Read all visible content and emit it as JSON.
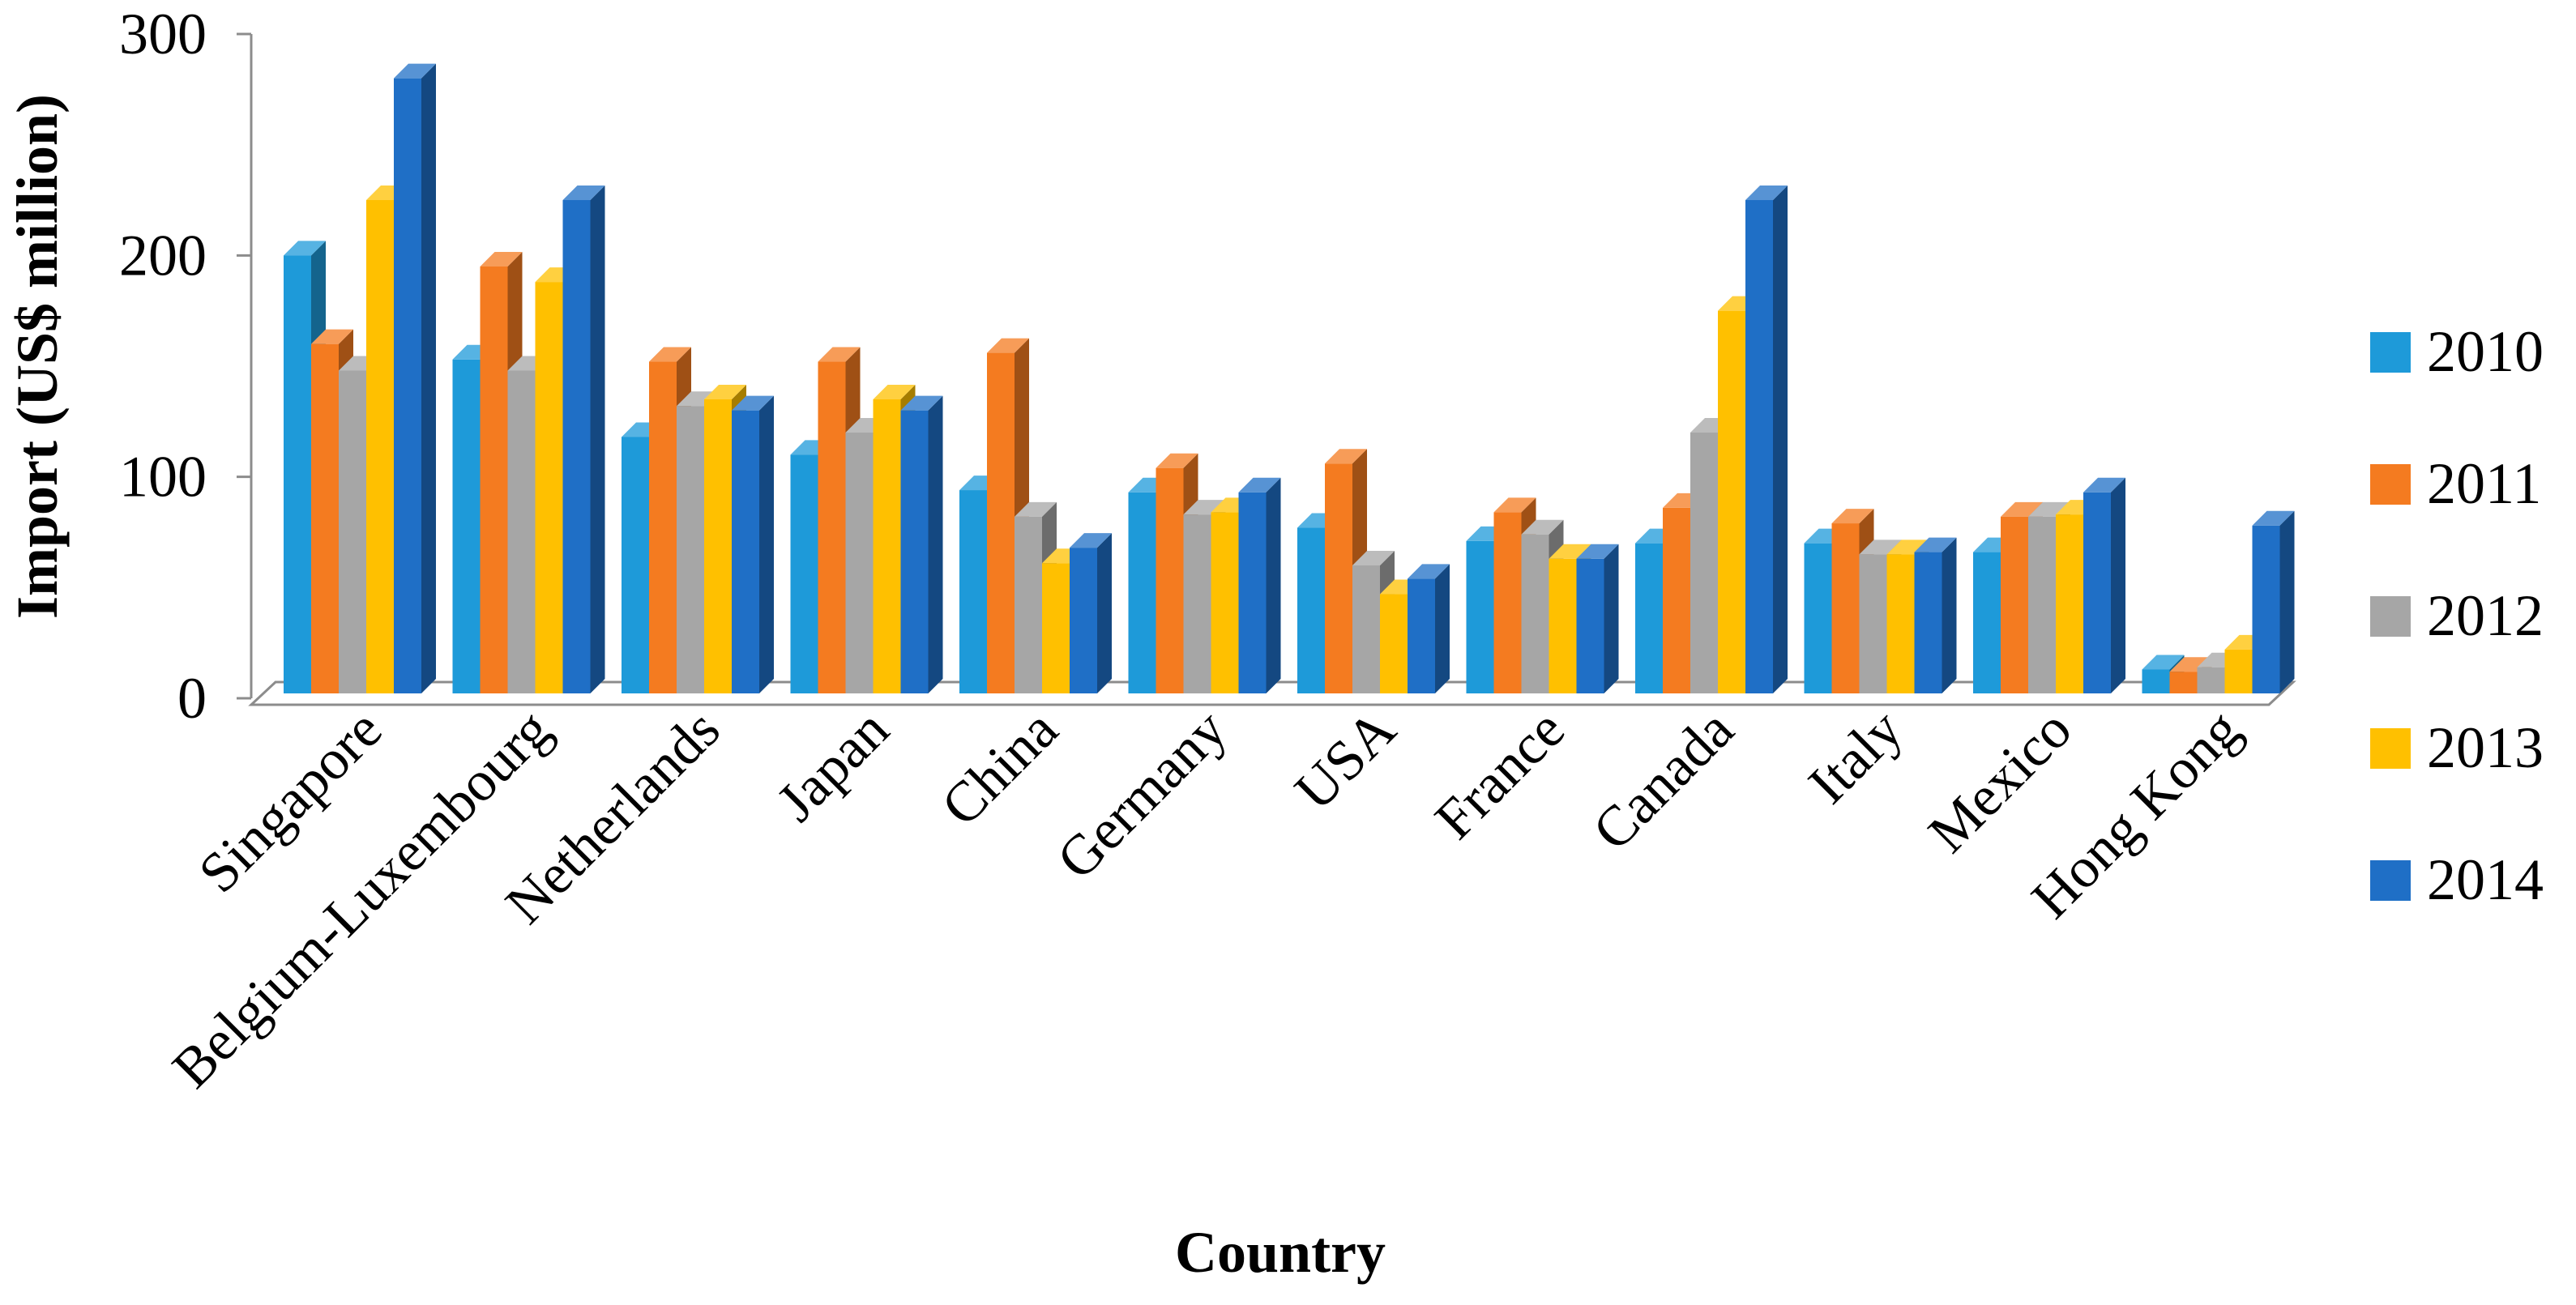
{
  "chart_data": {
    "type": "bar",
    "style": "3d-clustered-column",
    "xlabel": "Country",
    "ylabel": "Import (US$ million)",
    "ylim": [
      0,
      300
    ],
    "yticks": [
      "0",
      "100",
      "200",
      "300"
    ],
    "grid": false,
    "legend_position": "right",
    "categories": [
      "Singapore",
      "Belgium-Luxembourg",
      "Netherlands",
      "Japan",
      "China",
      "Germany",
      "USA",
      "France",
      "Canada",
      "Italy",
      "Mexico",
      "Hong Kong"
    ],
    "series": [
      {
        "name": "2010",
        "color": "#1e9ad9",
        "values": [
          200,
          153,
          118,
          110,
          94,
          93,
          77,
          71,
          70,
          70,
          66,
          13
        ]
      },
      {
        "name": "2011",
        "color": "#f47b20",
        "values": [
          160,
          195,
          152,
          152,
          156,
          104,
          106,
          84,
          86,
          79,
          82,
          12
        ]
      },
      {
        "name": "2012",
        "color": "#a6a6a6",
        "values": [
          148,
          148,
          132,
          120,
          82,
          83,
          60,
          74,
          120,
          65,
          82,
          14
        ]
      },
      {
        "name": "2013",
        "color": "#ffc000",
        "values": [
          225,
          188,
          135,
          135,
          61,
          84,
          47,
          63,
          175,
          65,
          83,
          22
        ]
      },
      {
        "name": "2014",
        "color": "#1f6fc6",
        "values": [
          280,
          225,
          130,
          130,
          68,
          93,
          54,
          63,
          225,
          66,
          93,
          78
        ]
      }
    ]
  }
}
